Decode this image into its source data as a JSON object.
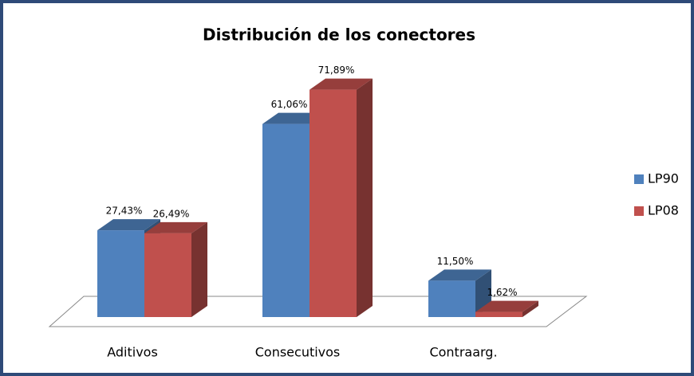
{
  "chart_data": {
    "type": "bar3d",
    "title": "Distribución de los conectores",
    "categories": [
      "Aditivos",
      "Consecutivos",
      "Contraarg."
    ],
    "series": [
      {
        "name": "LP90",
        "color": "#4f81bd",
        "values": [
          27.43,
          61.06,
          11.5
        ],
        "value_labels": [
          "27,43%",
          "61,06%",
          "11,50%"
        ]
      },
      {
        "name": "LP08",
        "color": "#c0504d",
        "values": [
          26.49,
          71.89,
          1.62
        ],
        "value_labels": [
          "26,49%",
          "71,89%",
          "1,62%"
        ]
      }
    ],
    "legend": "right"
  }
}
